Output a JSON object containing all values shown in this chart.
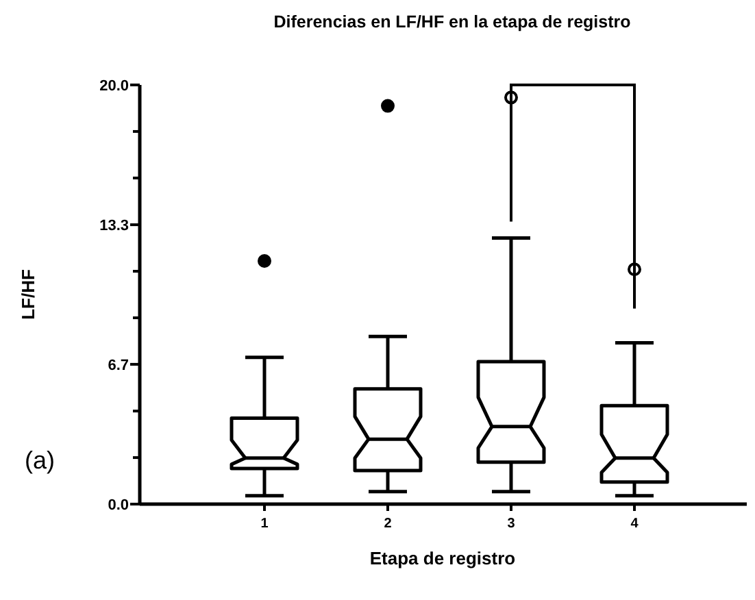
{
  "chart_data": {
    "type": "box",
    "title": "Diferencias en LF/HF en la etapa de registro",
    "xlabel": "Etapa de registro",
    "ylabel": "LF/HF",
    "categories": [
      "1",
      "2",
      "3",
      "4"
    ],
    "boxes": [
      {
        "low": 0.4,
        "q1": 1.7,
        "median": 2.2,
        "q3": 4.1,
        "high": 7.0,
        "outliers": [
          11.6
        ]
      },
      {
        "low": 0.6,
        "q1": 1.6,
        "median": 3.1,
        "q3": 5.5,
        "high": 8.0,
        "outliers": [
          19.0
        ]
      },
      {
        "low": 0.6,
        "q1": 2.0,
        "median": 3.7,
        "q3": 6.8,
        "high": 12.7,
        "outliers": [
          19.4
        ]
      },
      {
        "low": 0.4,
        "q1": 1.05,
        "median": 2.2,
        "q3": 4.7,
        "high": 7.7,
        "outliers": [
          11.2
        ]
      }
    ],
    "ylim": [
      0,
      20
    ],
    "yticks": [
      {
        "value": 0,
        "label": "0.0"
      },
      {
        "value": 2.22,
        "label": null
      },
      {
        "value": 4.44,
        "label": null
      },
      {
        "value": 6.67,
        "label": "6.7"
      },
      {
        "value": 8.89,
        "label": null
      },
      {
        "value": 11.11,
        "label": null
      },
      {
        "value": 13.33,
        "label": "13.3"
      },
      {
        "value": 15.56,
        "label": null
      },
      {
        "value": 17.78,
        "label": null
      },
      {
        "value": 20,
        "label": "20.0"
      }
    ],
    "annotations": [
      "(a)"
    ]
  }
}
